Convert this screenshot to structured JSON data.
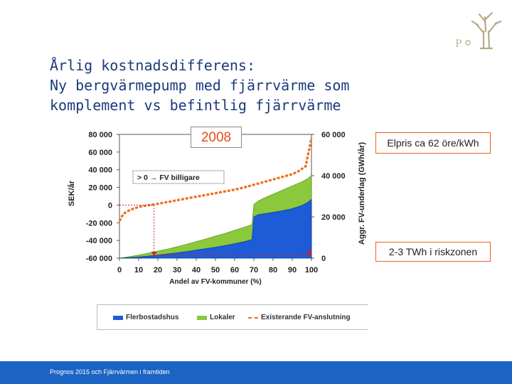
{
  "slide": {
    "title_lines": [
      "Årlig kostnadsdifferens:",
      "Ny bergvärmepump med fjärrvärme som",
      "komplement vs befintlig fjärrvärme"
    ],
    "year_label": "2008",
    "callout_price": "Elpris ca 62 öre/kWh",
    "callout_risk": "2-3 TWh i riskzonen",
    "footer": "Prognos 2015 och Fjärrvärmen i framtiden"
  },
  "colors": {
    "flerbostadshus": "#1e5bd6",
    "lokaler": "#8cc83c",
    "existerande": "#ee6e1e",
    "footer_bar": "#1b64c4",
    "callout_border": "#e8601c",
    "title": "#1c3a7a"
  },
  "chart_data": {
    "type": "area",
    "title": "",
    "xlabel": "Andel av FV-kommuner (%)",
    "ylabel_left": "SEK/år",
    "ylabel_right": "Aggr. FV-underlag (GWh/år)",
    "x_ticks": [
      "0",
      "10",
      "20",
      "30",
      "40",
      "50",
      "60",
      "70",
      "80",
      "90",
      "100"
    ],
    "y_left_ticks": [
      "80 000",
      "60 000",
      "40 000",
      "20 000",
      "0",
      "-20 000",
      "-40 000",
      "-60 000"
    ],
    "y_right_ticks": [
      "60 000",
      "40 000",
      "20 000",
      "0"
    ],
    "xlim": [
      0,
      100
    ],
    "ylim_left": [
      -60000,
      80000
    ],
    "ylim_right": [
      0,
      60000
    ],
    "grid": false,
    "legend_position": "bottom",
    "annotation": "> 0 → FV billigare",
    "legend": [
      "Flerbostadshus",
      "Lokaler",
      "Existerande FV-anslutning"
    ],
    "series": [
      {
        "name": "Flerbostadshus",
        "axis": "right",
        "x": [
          0,
          5,
          10,
          15,
          20,
          25,
          30,
          35,
          40,
          45,
          50,
          55,
          60,
          65,
          69,
          70,
          72,
          75,
          80,
          85,
          90,
          95,
          98,
          100
        ],
        "values": [
          0,
          300,
          600,
          1000,
          1500,
          2000,
          2600,
          3200,
          3900,
          4600,
          5300,
          6100,
          7000,
          8000,
          9000,
          20000,
          21000,
          21500,
          22200,
          23000,
          24000,
          25500,
          27000,
          28500
        ]
      },
      {
        "name": "Lokaler",
        "axis": "right",
        "x": [
          0,
          5,
          10,
          15,
          20,
          25,
          30,
          35,
          40,
          45,
          50,
          55,
          60,
          65,
          69,
          70,
          72,
          75,
          80,
          85,
          90,
          95,
          98,
          100
        ],
        "values": [
          0,
          700,
          1500,
          2400,
          3400,
          4400,
          5500,
          6700,
          8000,
          9300,
          10700,
          12000,
          13500,
          15000,
          16200,
          26000,
          27500,
          29000,
          31000,
          33000,
          35000,
          37000,
          38500,
          40000
        ]
      },
      {
        "name": "Existerande FV-anslutning",
        "axis": "left",
        "x": [
          0,
          2,
          5,
          10,
          15,
          20,
          25,
          30,
          35,
          40,
          45,
          50,
          55,
          60,
          65,
          70,
          75,
          80,
          85,
          90,
          93,
          95,
          97,
          98,
          99,
          100
        ],
        "values": [
          -18000,
          -10000,
          -6000,
          -2000,
          -200,
          1500,
          3500,
          5500,
          7500,
          9500,
          11500,
          13500,
          15500,
          17500,
          20000,
          23000,
          26000,
          29000,
          32000,
          35000,
          38000,
          41000,
          44000,
          55000,
          65000,
          76000
        ]
      }
    ]
  }
}
